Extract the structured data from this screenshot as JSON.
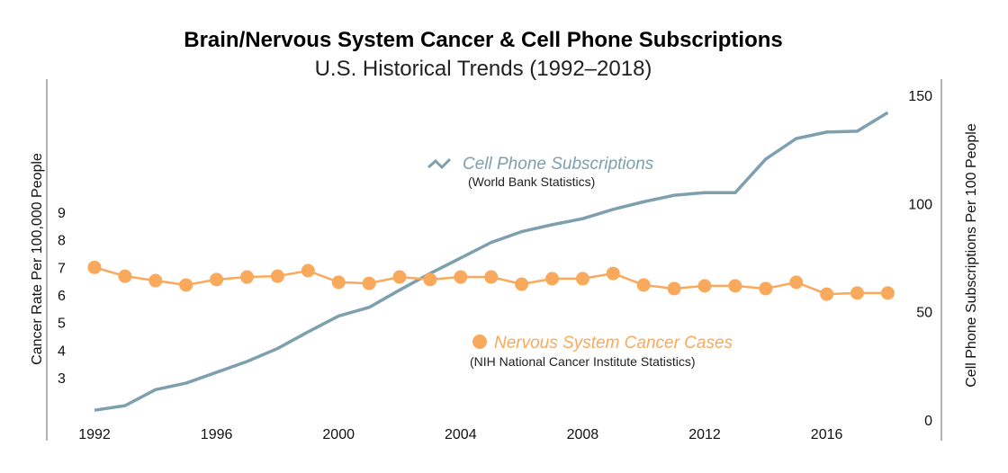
{
  "chart_data": {
    "type": "line",
    "title": "Brain/Nervous System Cancer & Cell Phone Subscriptions",
    "subtitle": "U.S. Historical Trends (1992–2018)",
    "x": [
      1992,
      1993,
      1994,
      1995,
      1996,
      1997,
      1998,
      1999,
      2000,
      2001,
      2002,
      2003,
      2004,
      2005,
      2006,
      2007,
      2008,
      2009,
      2010,
      2011,
      2012,
      2013,
      2014,
      2015,
      2016,
      2017,
      2018
    ],
    "x_ticks": [
      "1992",
      "1996",
      "2000",
      "2004",
      "2008",
      "2012",
      "2016"
    ],
    "xlim": [
      1992,
      2018
    ],
    "ylabel_left": "Cancer Rate Per 100,000 People",
    "ylabel_right": "Cell Phone Subscriptions Per 100 People",
    "ylim_left": [
      1,
      9.5
    ],
    "ylim_right": [
      0,
      150
    ],
    "yticks_left": [
      "3",
      "4",
      "5",
      "6",
      "7",
      "8",
      "9"
    ],
    "yticks_right": [
      "0",
      "50",
      "100",
      "150"
    ],
    "grid": false,
    "series": [
      {
        "name": "Cell Phone Subscriptions",
        "source": "(World Bank Statistics)",
        "axis": "right",
        "color": "#7D9FAE",
        "values": [
          4.5,
          6.6,
          14,
          17,
          22,
          27,
          33,
          40.7,
          48,
          52,
          60,
          67.7,
          74.8,
          82,
          87,
          90.2,
          93,
          97.3,
          100.8,
          103.8,
          105,
          105,
          120.5,
          130,
          133,
          133.4,
          142
        ]
      },
      {
        "name": "Nervous System Cancer Cases",
        "source": "(NIH National Cancer Institute Statistics)",
        "axis": "left",
        "color": "#F9A95C",
        "values": [
          7.0,
          6.68,
          6.52,
          6.36,
          6.56,
          6.65,
          6.68,
          6.88,
          6.46,
          6.42,
          6.65,
          6.56,
          6.65,
          6.65,
          6.39,
          6.59,
          6.59,
          6.78,
          6.36,
          6.23,
          6.33,
          6.33,
          6.23,
          6.46,
          6.03,
          6.07,
          6.07
        ]
      }
    ]
  }
}
